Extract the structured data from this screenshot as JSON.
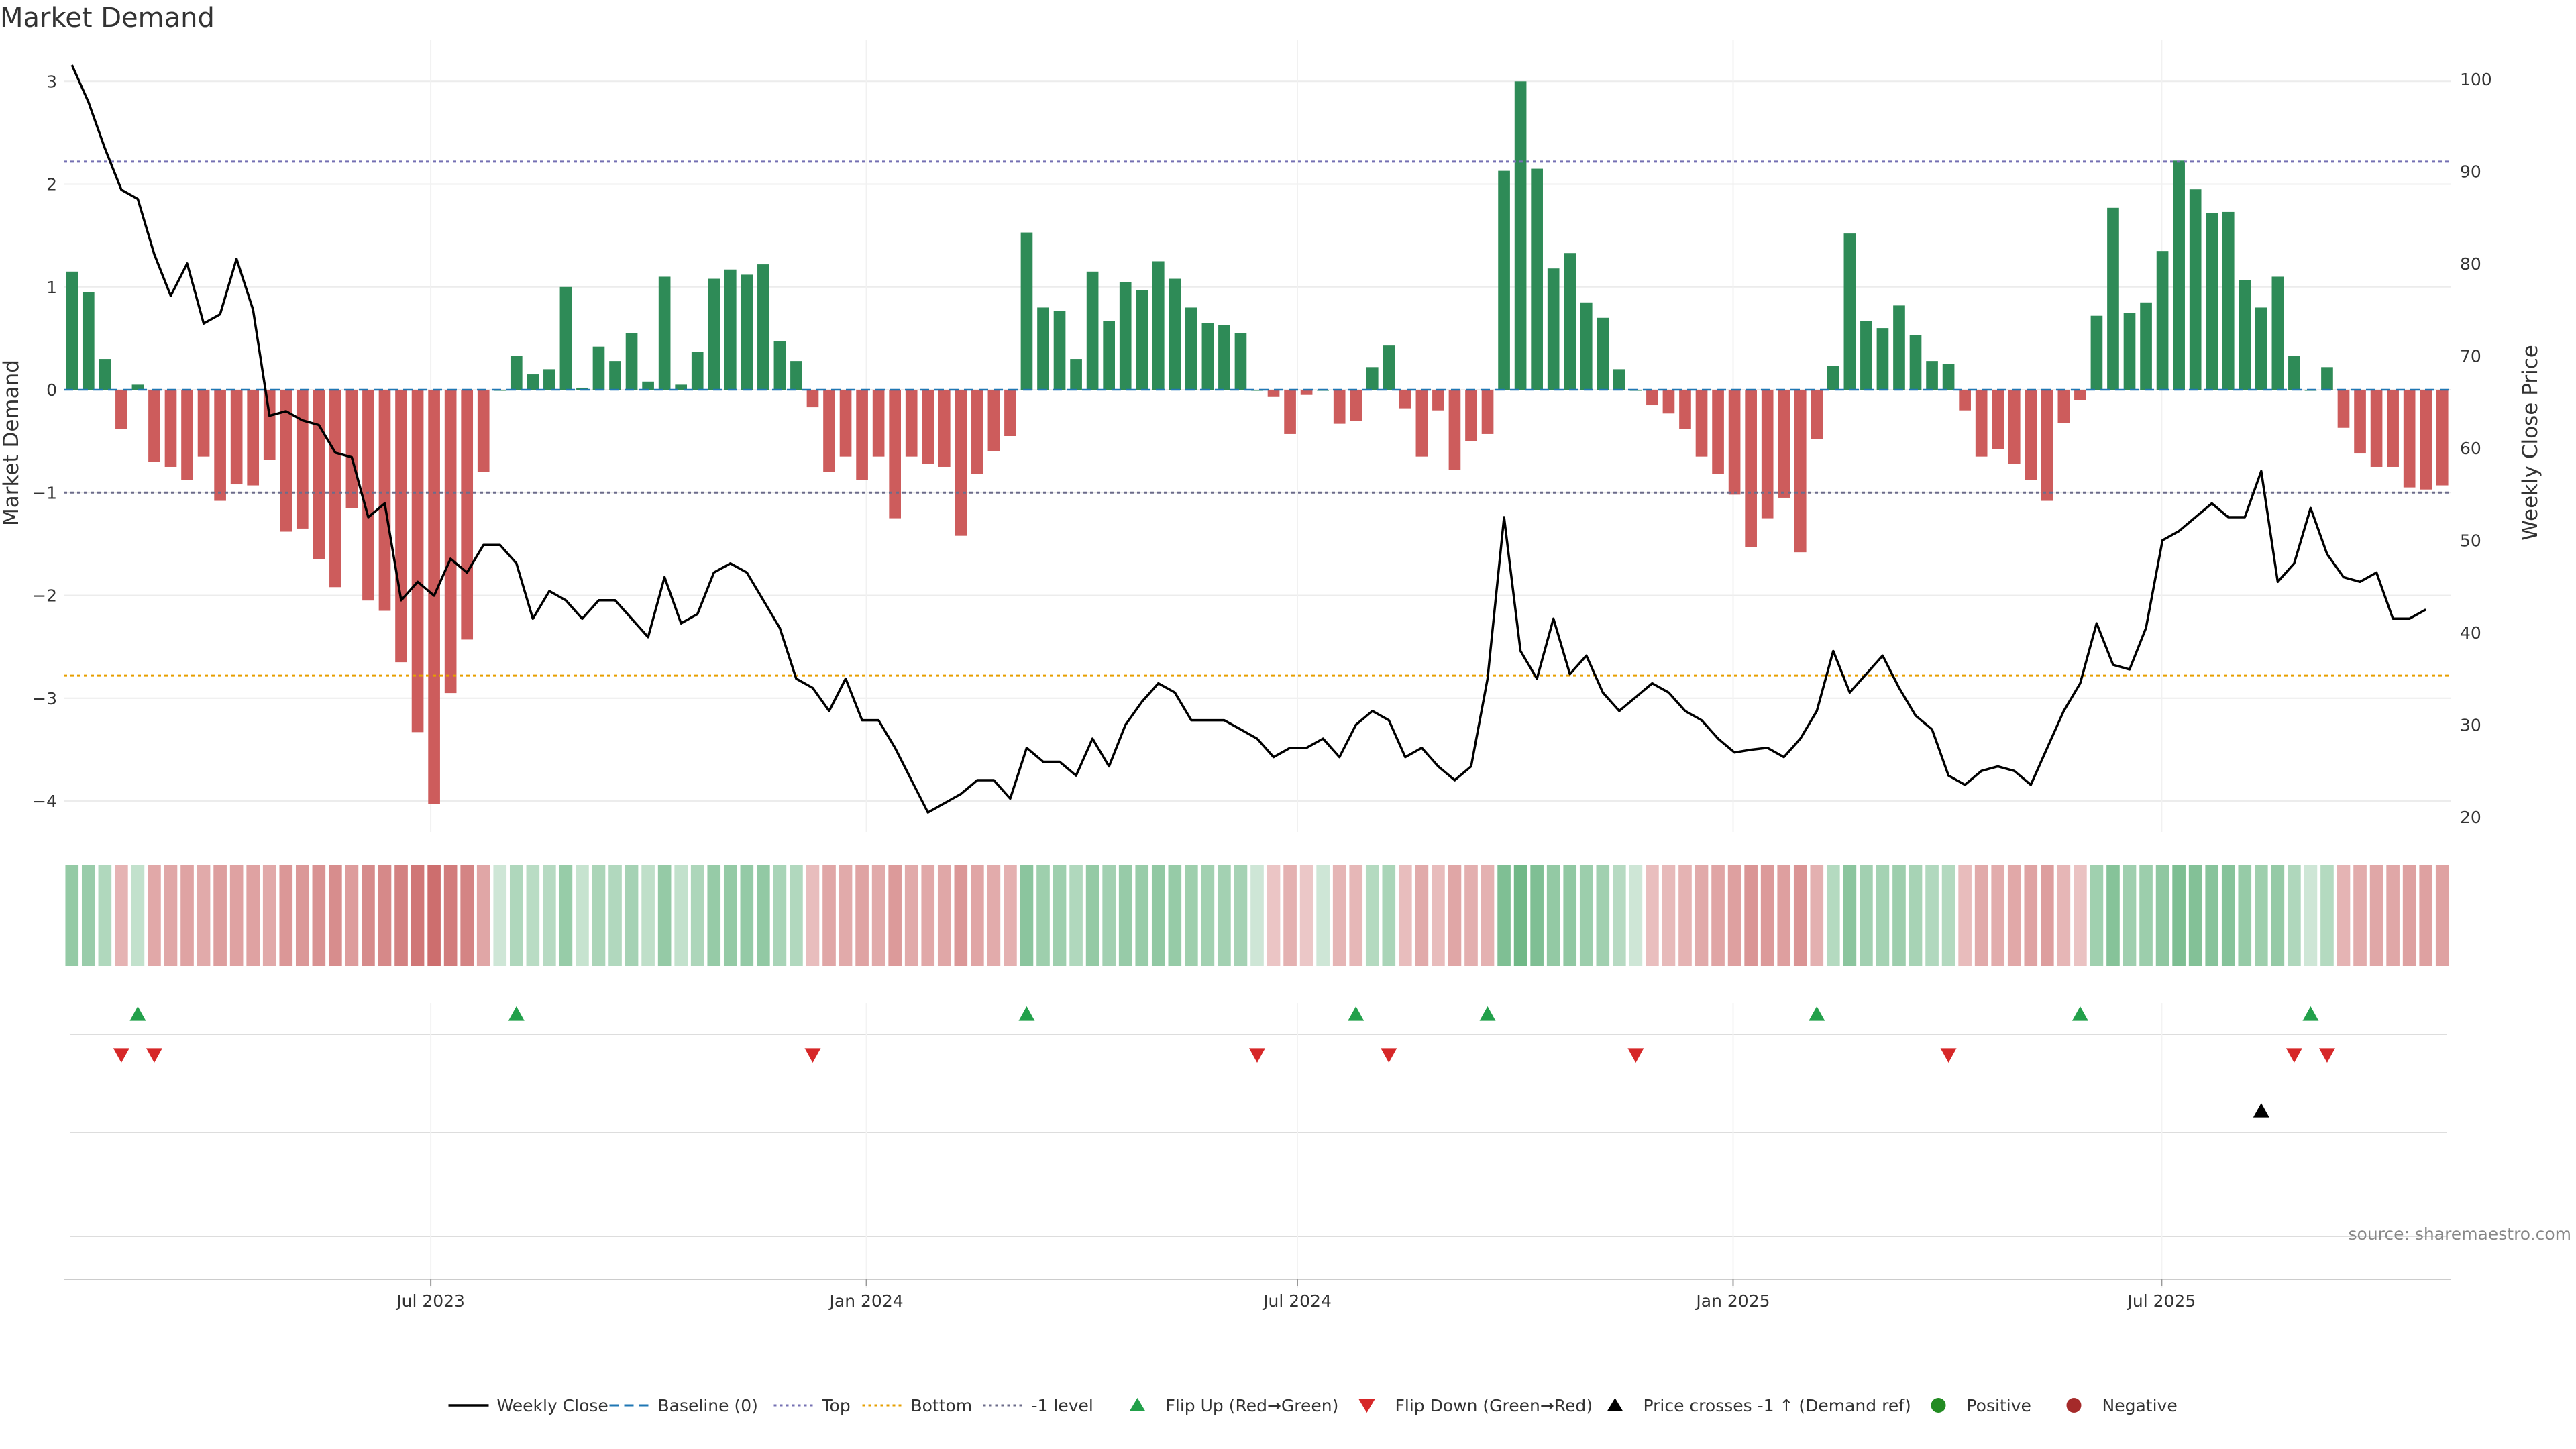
{
  "chart_data": {
    "type": "bar",
    "title": "Market Demand",
    "ylabel": "Market Demand",
    "y2label": "Weekly Close Price",
    "ylim": [
      -4.3,
      3.4
    ],
    "y2lim": [
      18.4,
      104.2
    ],
    "yticks": [
      3,
      2,
      1,
      0,
      -1,
      -2,
      -3,
      -4
    ],
    "ytick_labels": [
      "3",
      "2",
      "1",
      "0",
      "−1",
      "−2",
      "−3",
      "−4"
    ],
    "y2ticks": [
      100,
      90,
      80,
      70,
      60,
      50,
      40,
      30,
      20
    ],
    "y2tick_labels": [
      "100",
      "90",
      "80",
      "70",
      "60",
      "50",
      "40",
      "30",
      "20"
    ],
    "x_dates": [
      "2023-07-01",
      "2024-01-01",
      "2024-07-01",
      "2025-01-01",
      "2025-07-01"
    ],
    "x_tick_labels": [
      "Jul 2023",
      "Jan 2024",
      "Jul 2024",
      "Jan 2025",
      "Jul 2025"
    ],
    "x_start": "2023-01-27",
    "x_end": "2025-10-31",
    "ref_lines": [
      {
        "name": "Top",
        "value": 2.22,
        "color": "#7570b3"
      },
      {
        "name": "Bottom",
        "value": -2.78,
        "color": "#e69f00"
      },
      {
        "name": "-1 level",
        "value": -1.0,
        "color": "#6b6b8a"
      }
    ],
    "demand": [
      1.15,
      0.95,
      0.3,
      -0.38,
      0.05,
      -0.7,
      -0.75,
      -0.88,
      -0.65,
      -1.08,
      -0.92,
      -0.93,
      -0.68,
      -1.38,
      -1.35,
      -1.65,
      -1.92,
      -1.15,
      -2.05,
      -2.15,
      -2.65,
      -3.33,
      -4.03,
      -2.95,
      -2.43,
      -0.8,
      0.0,
      0.33,
      0.15,
      0.2,
      1.0,
      0.02,
      0.42,
      0.28,
      0.55,
      0.08,
      1.1,
      0.05,
      0.37,
      1.08,
      1.17,
      1.12,
      1.22,
      0.47,
      0.28,
      -0.17,
      -0.8,
      -0.65,
      -0.88,
      -0.65,
      -1.25,
      -0.65,
      -0.72,
      -0.75,
      -1.42,
      -0.82,
      -0.6,
      -0.45,
      1.53,
      0.8,
      0.77,
      0.3,
      1.15,
      0.67,
      1.05,
      0.97,
      1.25,
      1.08,
      0.8,
      0.65,
      0.63,
      0.55,
      0.0,
      -0.07,
      -0.43,
      -0.05,
      0.0,
      -0.33,
      -0.3,
      0.22,
      0.43,
      -0.18,
      -0.65,
      -0.2,
      -0.78,
      -0.5,
      -0.43,
      2.13,
      3.0,
      2.15,
      1.18,
      1.33,
      0.85,
      0.7,
      0.2,
      0.0,
      -0.15,
      -0.23,
      -0.38,
      -0.65,
      -0.82,
      -1.02,
      -1.53,
      -1.25,
      -1.05,
      -1.58,
      -0.48,
      0.23,
      1.52,
      0.67,
      0.6,
      0.82,
      0.53,
      0.28,
      0.25,
      -0.2,
      -0.65,
      -0.58,
      -0.72,
      -0.88,
      -1.08,
      -0.32,
      -0.1,
      0.72,
      1.77,
      0.75,
      0.85,
      1.35,
      2.23,
      1.95,
      1.72,
      1.73,
      1.07,
      0.8,
      1.1,
      0.33,
      0.0,
      0.22,
      -0.37,
      -0.62,
      -0.75,
      -0.75,
      -0.95,
      -0.97,
      -0.93
    ],
    "price_series": {
      "name": "Weekly Close",
      "values": [
        101.5,
        97.5,
        92.5,
        88.0,
        87.0,
        81.0,
        76.5,
        80.0,
        73.5,
        74.5,
        80.5,
        75.0,
        63.5,
        64.0,
        63.0,
        62.5,
        59.5,
        59.0,
        52.5,
        54.0,
        43.5,
        45.5,
        44.0,
        48.0,
        46.5,
        49.5,
        49.5,
        47.5,
        41.5,
        44.5,
        43.5,
        41.5,
        43.5,
        43.5,
        41.5,
        39.5,
        46.0,
        41.0,
        42.0,
        46.5,
        47.5,
        46.5,
        43.5,
        40.5,
        35.0,
        34.0,
        31.5,
        35.0,
        30.5,
        30.5,
        27.5,
        24.0,
        20.5,
        21.5,
        22.5,
        24.0,
        24.0,
        22.0,
        27.5,
        26.0,
        26.0,
        24.5,
        28.5,
        25.5,
        30.0,
        32.5,
        34.5,
        33.5,
        30.5,
        30.5,
        30.5,
        29.5,
        28.5,
        26.5,
        27.5,
        27.5,
        28.5,
        26.5,
        30.0,
        31.5,
        30.5,
        26.5,
        27.5,
        25.5,
        24.0,
        25.5,
        35.0,
        52.5,
        38.0,
        35.0,
        41.5,
        35.5,
        37.5,
        33.5,
        31.5,
        33.0,
        34.5,
        33.5,
        31.5,
        30.5,
        28.5,
        27.0,
        27.3,
        27.5,
        26.5,
        28.5,
        31.5,
        38.0,
        33.5,
        35.5,
        37.5,
        34.0,
        31.0,
        29.5,
        24.5,
        23.5,
        25.0,
        25.5,
        25.0,
        23.5,
        27.5,
        31.5,
        34.5,
        41.0,
        36.5,
        36.0,
        40.5,
        50.0,
        51.0,
        52.5,
        54.0,
        52.5,
        52.5,
        57.5,
        45.5,
        47.5,
        53.5,
        48.5,
        46.0,
        45.5,
        46.5,
        41.5,
        41.5,
        42.5
      ]
    },
    "flip_up": [
      4,
      27,
      58,
      78,
      86,
      106,
      122,
      136
    ],
    "flip_down": [
      3,
      5,
      45,
      72,
      80,
      95,
      114,
      135,
      137
    ],
    "price_cross": [
      133
    ],
    "source": "source: sharemaestro.com",
    "legend": [
      {
        "label": "Weekly Close",
        "kind": "solid",
        "color": "#000000"
      },
      {
        "label": "Baseline (0)",
        "kind": "dash",
        "color": "#1f77b4"
      },
      {
        "label": "Top",
        "kind": "dot",
        "color": "#7570b3"
      },
      {
        "label": "Bottom",
        "kind": "dot",
        "color": "#e69f00"
      },
      {
        "label": "-1 level",
        "kind": "dot",
        "color": "#6b6b8a"
      },
      {
        "label": "Flip Up (Red→Green)",
        "kind": "tri-up",
        "color": "#22a04a"
      },
      {
        "label": "Flip Down (Green→Red)",
        "kind": "tri-down",
        "color": "#d62728"
      },
      {
        "label": "Price crosses -1 ↑ (Demand ref)",
        "kind": "tri-up",
        "color": "#000000"
      },
      {
        "label": "Positive",
        "kind": "circle",
        "color": "#228b22"
      },
      {
        "label": "Negative",
        "kind": "circle",
        "color": "#a52a2a"
      }
    ],
    "colors": {
      "positive": "#2e8b57",
      "negative": "#cd5c5c",
      "price": "#000000"
    }
  }
}
